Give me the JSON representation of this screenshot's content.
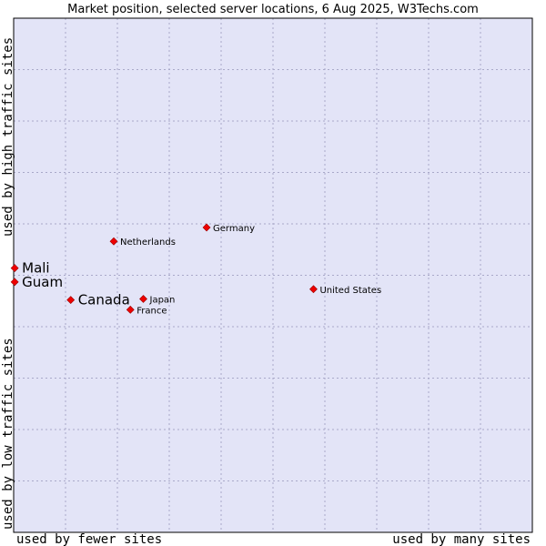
{
  "chart_data": {
    "type": "scatter",
    "title": "Market position, selected server locations, 6 Aug 2025, W3Techs.com",
    "xlabel_left": "used by fewer sites",
    "xlabel_right": "used by many sites",
    "ylabel_bottom": "used by low traffic sites",
    "ylabel_top": "used by high traffic sites",
    "xlim": [
      0,
      10
    ],
    "ylim": [
      0,
      10
    ],
    "grid": true,
    "colors": {
      "plot_bg": "#e3e4f7",
      "grid": "#a9a9c9",
      "marker": "#ee0000",
      "marker_edge": "#990000",
      "border": "#000000"
    },
    "points": [
      {
        "name": "Mali",
        "x": 0.02,
        "y": 5.14,
        "highlight": true
      },
      {
        "name": "Guam",
        "x": 0.02,
        "y": 4.87,
        "highlight": true
      },
      {
        "name": "Canada",
        "x": 1.1,
        "y": 4.52,
        "highlight": true
      },
      {
        "name": "Netherlands",
        "x": 1.93,
        "y": 5.66,
        "highlight": false
      },
      {
        "name": "Germany",
        "x": 3.72,
        "y": 5.93,
        "highlight": false
      },
      {
        "name": "Japan",
        "x": 2.5,
        "y": 4.54,
        "highlight": false
      },
      {
        "name": "France",
        "x": 2.25,
        "y": 4.33,
        "highlight": false
      },
      {
        "name": "United States",
        "x": 5.78,
        "y": 4.73,
        "highlight": false
      }
    ]
  }
}
